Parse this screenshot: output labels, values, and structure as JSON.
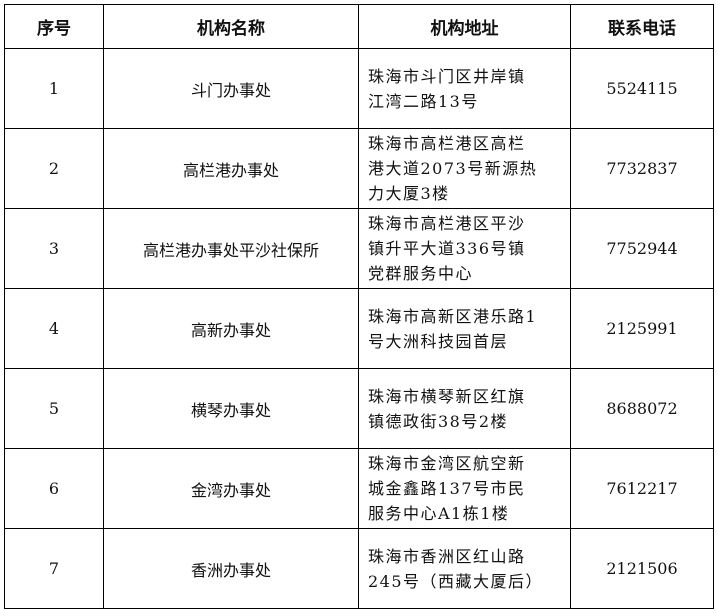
{
  "table": {
    "header": [
      "序号",
      "机构名称",
      "机构地址",
      "联系电话"
    ],
    "rows": [
      [
        "1",
        "斗门办事处",
        [
          "珠海市斗门区井岸镇",
          "江湾二路13号"
        ],
        "5524115"
      ],
      [
        "2",
        "高栏港办事处",
        [
          "珠海市高栏港区高栏",
          "港大道2073号新源热",
          "力大厦3楼"
        ],
        "7732837"
      ],
      [
        "3",
        "高栏港办事处平沙社保所",
        [
          "珠海市高栏港区平沙",
          "镇升平大道336号镇",
          "党群服务中心"
        ],
        "7752944"
      ],
      [
        "4",
        "高新办事处",
        [
          "珠海市高新区港乐路1",
          "号大洲科技园首层"
        ],
        "2125991"
      ],
      [
        "5",
        "横琴办事处",
        [
          "珠海市横琴新区红旗",
          "镇德政街38号2楼"
        ],
        "8688072"
      ],
      [
        "6",
        "金湾办事处",
        [
          "珠海市金湾区航空新",
          "城金鑫路137号市民",
          "服务中心A1栋1楼"
        ],
        "7612217"
      ],
      [
        "7",
        "香洲办事处",
        [
          "珠海市香洲区红山路",
          "245号（西藏大厦后）"
        ],
        "2121506"
      ]
    ]
  }
}
